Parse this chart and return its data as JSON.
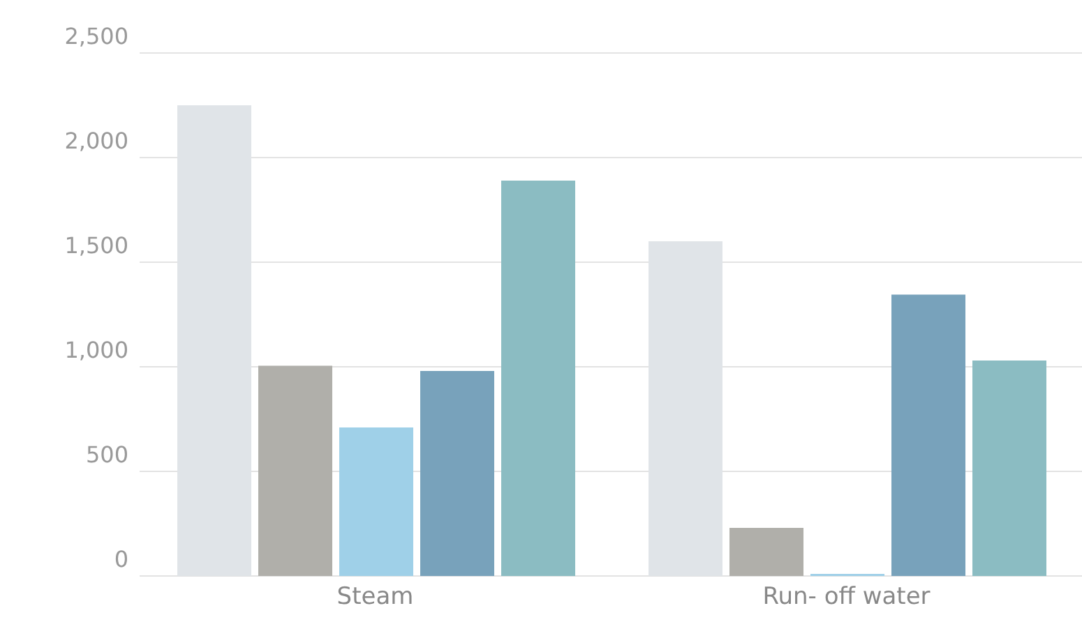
{
  "chart_data": {
    "type": "bar",
    "categories": [
      "Steam",
      "Run- off water"
    ],
    "series": [
      {
        "color": "#e0e4e8",
        "values": [
          2250,
          1600
        ]
      },
      {
        "color": "#b0afaa",
        "values": [
          1005,
          230
        ]
      },
      {
        "color": "#9fd0e8",
        "values": [
          710,
          10
        ]
      },
      {
        "color": "#78a2bb",
        "values": [
          980,
          1345
        ]
      },
      {
        "color": "#8bbcc2",
        "values": [
          1890,
          1030
        ]
      }
    ],
    "ylim": [
      0,
      2500
    ],
    "yticks": [
      0,
      500,
      {
        "value": 1000,
        "label": "1,000"
      },
      {
        "value": 1500,
        "label": "1,500"
      },
      {
        "value": 2000,
        "label": "2,000"
      },
      {
        "value": 2500,
        "label": "2,500"
      }
    ],
    "grid": "y",
    "legend": false
  }
}
